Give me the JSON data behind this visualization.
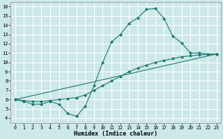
{
  "xlabel": "Humidex (Indice chaleur)",
  "bg_color": "#cce8e8",
  "grid_color": "#ffffff",
  "line_color": "#1a7a6e",
  "xlim": [
    -0.5,
    23.5
  ],
  "ylim": [
    3.5,
    16.5
  ],
  "xticks": [
    0,
    1,
    2,
    3,
    4,
    5,
    6,
    7,
    8,
    9,
    10,
    11,
    12,
    13,
    14,
    15,
    16,
    17,
    18,
    19,
    20,
    21,
    22,
    23
  ],
  "yticks": [
    4,
    5,
    6,
    7,
    8,
    9,
    10,
    11,
    12,
    13,
    14,
    15,
    16
  ],
  "line1_x": [
    0,
    1,
    2,
    3,
    4,
    5,
    6,
    7,
    8,
    9,
    10,
    11,
    12,
    13,
    14,
    15,
    16,
    17,
    18,
    19,
    20,
    21,
    22,
    23
  ],
  "line1_y": [
    6.0,
    5.8,
    5.5,
    5.5,
    5.8,
    5.5,
    4.5,
    4.2,
    5.3,
    7.5,
    10.0,
    12.2,
    13.0,
    14.2,
    14.8,
    15.7,
    15.8,
    14.7,
    12.8,
    12.1,
    11.0,
    11.0,
    10.9,
    10.9
  ],
  "line2_x": [
    0,
    1,
    2,
    3,
    4,
    5,
    6,
    7,
    8,
    9,
    10,
    11,
    12,
    13,
    14,
    15,
    16,
    17,
    18,
    19,
    20,
    21,
    22,
    23
  ],
  "line2_y": [
    6.0,
    5.9,
    5.8,
    5.8,
    5.9,
    6.0,
    6.1,
    6.2,
    6.5,
    7.0,
    7.5,
    8.0,
    8.5,
    9.0,
    9.4,
    9.7,
    10.0,
    10.2,
    10.4,
    10.6,
    10.7,
    10.8,
    10.85,
    10.9
  ],
  "line3_x": [
    0,
    23
  ],
  "line3_y": [
    6.0,
    10.9
  ]
}
